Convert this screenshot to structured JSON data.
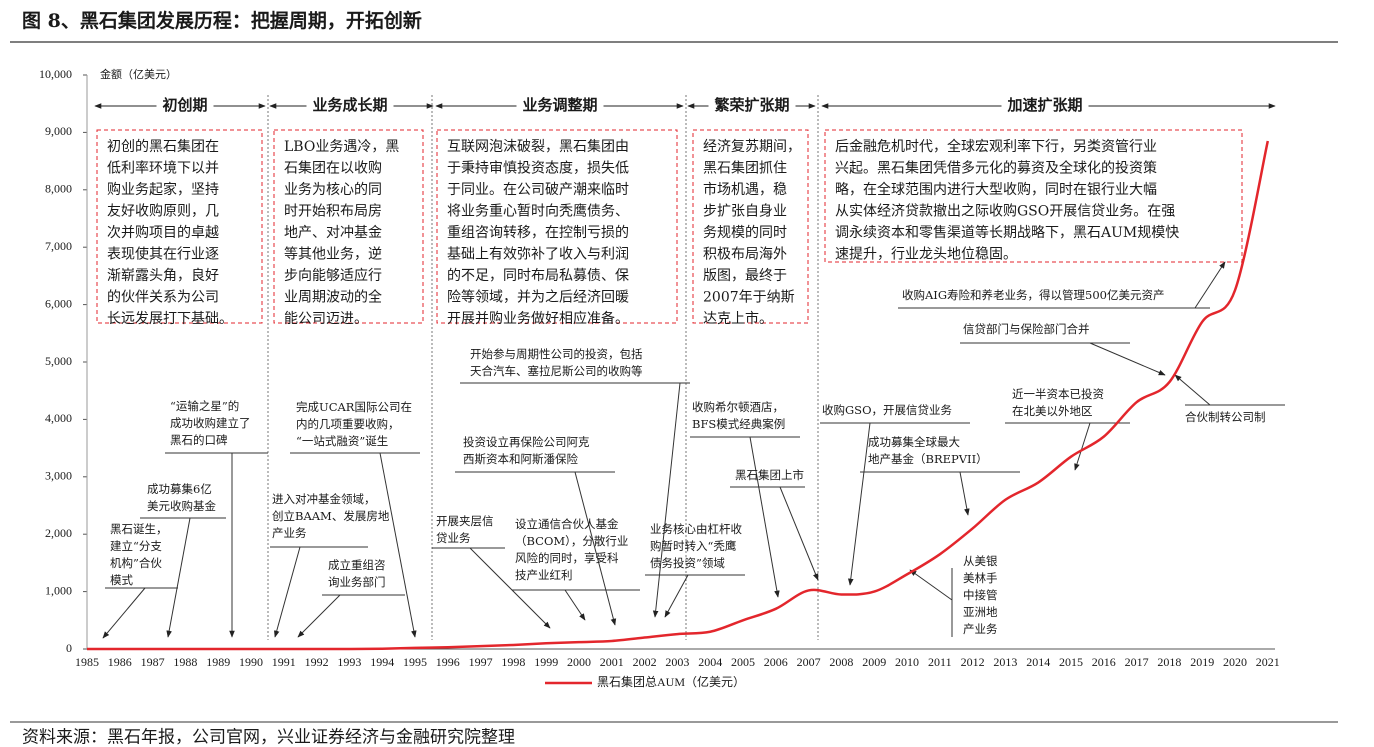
{
  "chart_data": {
    "type": "line",
    "title": "图 8、黑石集团发展历程：把握周期，开拓创新",
    "y_label": "金额（亿美元）",
    "categories": [
      "1985",
      "1986",
      "1987",
      "1988",
      "1989",
      "1990",
      "1991",
      "1992",
      "1993",
      "1994",
      "1995",
      "1996",
      "1997",
      "1998",
      "1999",
      "2000",
      "2001",
      "2002",
      "2003",
      "2004",
      "2005",
      "2006",
      "2007",
      "2008",
      "2009",
      "2010",
      "2011",
      "2012",
      "2013",
      "2014",
      "2015",
      "2016",
      "2017",
      "2018",
      "2019",
      "2020",
      "2021"
    ],
    "series": [
      {
        "name": "黑石集团总AUM（亿美元）",
        "color": "#e3262c",
        "values": [
          0,
          0,
          0,
          0,
          0,
          0,
          0,
          0,
          0,
          5,
          20,
          30,
          50,
          70,
          100,
          120,
          140,
          200,
          260,
          300,
          500,
          700,
          1020,
          950,
          1000,
          1300,
          1650,
          2100,
          2600,
          2900,
          3350,
          3700,
          4300,
          4650,
          5700,
          6250,
          8850
        ]
      }
    ],
    "ylim": [
      0,
      10000
    ],
    "yticks": [
      0,
      {
        "value": 1000,
        "label": "1,000"
      },
      {
        "value": 2000,
        "label": "2,000"
      },
      {
        "value": 3000,
        "label": "3,000"
      },
      {
        "value": 4000,
        "label": "4,000"
      },
      {
        "value": 5000,
        "label": "5,000"
      },
      {
        "value": 6000,
        "label": "6,000"
      },
      {
        "value": 7000,
        "label": "7,000"
      },
      {
        "value": 8000,
        "label": "8,000"
      },
      {
        "value": 9000,
        "label": "9,000"
      },
      {
        "value": 10000,
        "label": "10,000"
      }
    ],
    "phases": [
      "初创期",
      "业务成长期",
      "业务调整期",
      "繁荣扩张期",
      "加速扩张期"
    ],
    "boxes": [
      [
        "初创的黑石集团在",
        "低利率环境下以并",
        "购业务起家，坚持",
        "友好收购原则，几",
        "次并购项目的卓越",
        "表现使其在行业逐",
        "渐崭露头角，良好",
        "的伙伴关系为公司",
        "长远发展打下基础。"
      ],
      [
        "LBO业务遇冷，黑",
        "石集团在以收购",
        "业务为核心的同",
        "时开始积布局房",
        "地产、对冲基金",
        "等其他业务，逆",
        "步向能够适应行",
        "业周期波动的全",
        "能公司迈进。"
      ],
      [
        "互联网泡沫破裂，黑石集团由",
        "于秉持审慎投资态度，损失低",
        "于同业。在公司破产潮来临时",
        "将业务重心暂时向秃鹰债务、",
        "重组咨询转移，在控制亏损的",
        "基础上有效弥补了收入与利润",
        "的不足，同时布局私募债、保",
        "险等领域，并为之后经济回暖",
        "开展并购业务做好相应准备。"
      ],
      [
        "经济复苏期间，",
        "黑石集团抓住",
        "市场机遇，稳",
        "步扩张自身业",
        "务规模的同时",
        "积极布局海外",
        "版图，最终于",
        "2007年于纳斯",
        "达克上市。"
      ],
      [
        "后金融危机时代，全球宏观利率下行，另类资管行业",
        "兴起。黑石集团凭借多元化的募资及全球化的投资策",
        "略，在全球范围内进行大型收购，同时在银行业大幅",
        "从实体经济贷款撤出之际收购GSO开展信贷业务。在强",
        "调永续资本和零售渠道等长期战略下，黑石AUM规模快",
        "速提升，行业龙头地位稳固。"
      ]
    ],
    "events": [
      [
        "黑石诞生，",
        "建立“分支",
        "机构”合伙",
        "模式"
      ],
      [
        "成功募集6亿",
        "美元收购基金"
      ],
      [
        "“运输之星”的",
        "成功收购建立了",
        "黑石的口碑"
      ],
      [
        "进入对冲基金领域，",
        "创立BAAM、发展房地",
        "产业务"
      ],
      [
        "完成UCAR国际公司在",
        "内的几项重要收购，",
        "“一站式融资”诞生"
      ],
      [
        "成立重组咨",
        "询业务部门"
      ],
      [
        "开始参与周期性公司的投资，包括",
        "天合汽车、塞拉尼斯公司的收购等"
      ],
      [
        "投资设立再保险公司阿克",
        "西斯资本和阿斯潘保险"
      ],
      [
        "开展夹层信",
        "贷业务"
      ],
      [
        "设立通信合伙人基金",
        "（BCOM），分散行业",
        "风险的同时，享受科",
        "技产业红利"
      ],
      [
        "业务核心由杠杆收",
        "购暂时转入“秃鹰",
        "债务投资”领域"
      ],
      [
        "收购希尔顿酒店，",
        "BFS模式经典案例"
      ],
      [
        "黑石集团上市"
      ],
      [
        "收购GSO，开展信贷业务"
      ],
      [
        "成功募集全球最大",
        "地产基金（BREPVII）"
      ],
      [
        "从美银",
        "美林手",
        "中接管",
        "亚洲地",
        "产业务"
      ],
      [
        "近一半资本已投资",
        "在北美以外地区"
      ],
      [
        "信贷部门与保险部门合并"
      ],
      [
        "收购AIG寿险和养老业务，得以管理500亿美元资产"
      ],
      [
        "合伙制转公司制"
      ]
    ]
  },
  "source": "资料来源：黑石年报，公司官网，兴业证券经济与金融研究院整理"
}
